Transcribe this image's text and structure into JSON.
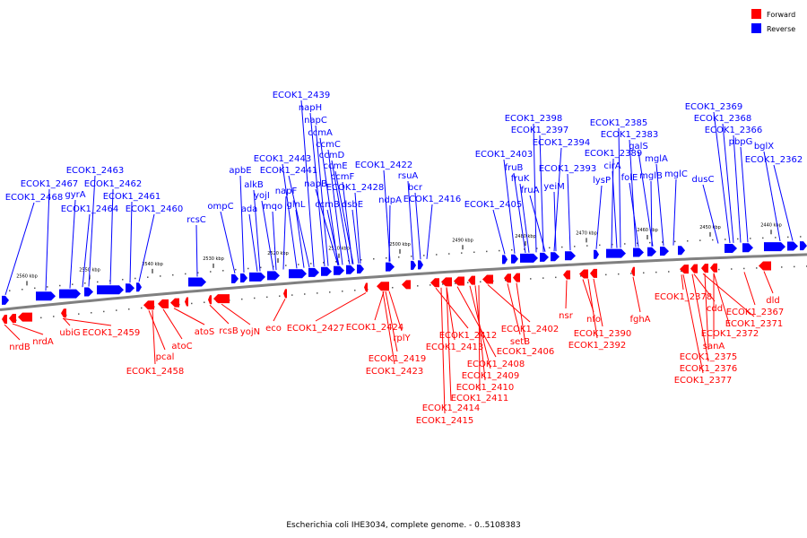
{
  "title": "Escherichia coli IHE3034, complete genome. - 0..5108383",
  "colors": {
    "forward": "#ff0000",
    "reverse": "#0000ff",
    "backbone": "#808080"
  },
  "legend": [
    {
      "key": "forward",
      "label": "Forward"
    },
    {
      "key": "reverse",
      "label": "Reverse"
    }
  ],
  "scale_ticks": [
    "2560 kbp",
    "2550 kbp",
    "2540 kbp",
    "2530 kbp",
    "2520 kbp",
    "2510 kbp",
    "2500 kbp",
    "2490 kbp",
    "2480 kbp",
    "2470 kbp",
    "2460 kbp",
    "2450 kbp",
    "2440 kbp"
  ],
  "reverse_labels": [
    "ECOK1_2468",
    "ECOK1_2467",
    "gyrA",
    "ECOK1_2463",
    "ECOK1_2464",
    "ECOK1_2462",
    "ECOK1_2461",
    "ECOK1_2460",
    "rcsC",
    "ompC",
    "apbE",
    "ada",
    "alkB",
    "yojI",
    "mqo",
    "napF",
    "ECOK1_2443",
    "ECOK1_2441",
    "glnL",
    "ECOK1_2439",
    "napH",
    "napC",
    "ccmA",
    "napB",
    "ccmC",
    "ccmD",
    "ccmE",
    "ccmB",
    "ccmF",
    "ECOK1_2428",
    "dsbE",
    "ECOK1_2422",
    "ndpA",
    "rsuA",
    "bcr",
    "ECOK1_2416",
    "ECOK1_2405",
    "ECOK1_2403",
    "fruB",
    "fruK",
    "fruA",
    "ECOK1_2398",
    "ECOK1_2397",
    "yeiM",
    "ECOK1_2394",
    "ECOK1_2393",
    "lysP",
    "ECOK1_2389",
    "cirA",
    "ECOK1_2385",
    "ECOK1_2383",
    "folE",
    "galS",
    "mglB",
    "mglA",
    "mglC",
    "dusC",
    "ECOK1_2369",
    "ECOK1_2368",
    "ECOK1_2366",
    "pbpG",
    "bglX",
    "ECOK1_2362"
  ],
  "forward_labels": [
    "nrdB",
    "nrdA",
    "ubiG",
    "ECOK1_2459",
    "pcal",
    "ECOK1_2458",
    "atoC",
    "atoS",
    "rcsB",
    "yojN",
    "eco",
    "ECOK1_2427",
    "ECOK1_2424",
    "rplY",
    "ECOK1_2419",
    "ECOK1_2423",
    "ECOK1_2412",
    "ECOK1_2413",
    "ECOK1_2414",
    "ECOK1_2415",
    "ECOK1_2408",
    "ECOK1_2409",
    "ECOK1_2410",
    "ECOK1_2411",
    "ECOK1_2402",
    "setB",
    "ECOK1_2406",
    "nsr",
    "nfo",
    "ECOK1_2390",
    "ECOK1_2392",
    "fghA",
    "ECOK1_2378",
    "cdd",
    "ECOK1_2371",
    "ECOK1_2372",
    "sanA",
    "ECOK1_2375",
    "ECOK1_2376",
    "ECOK1_2377",
    "dld",
    "ECOK1_2367"
  ]
}
